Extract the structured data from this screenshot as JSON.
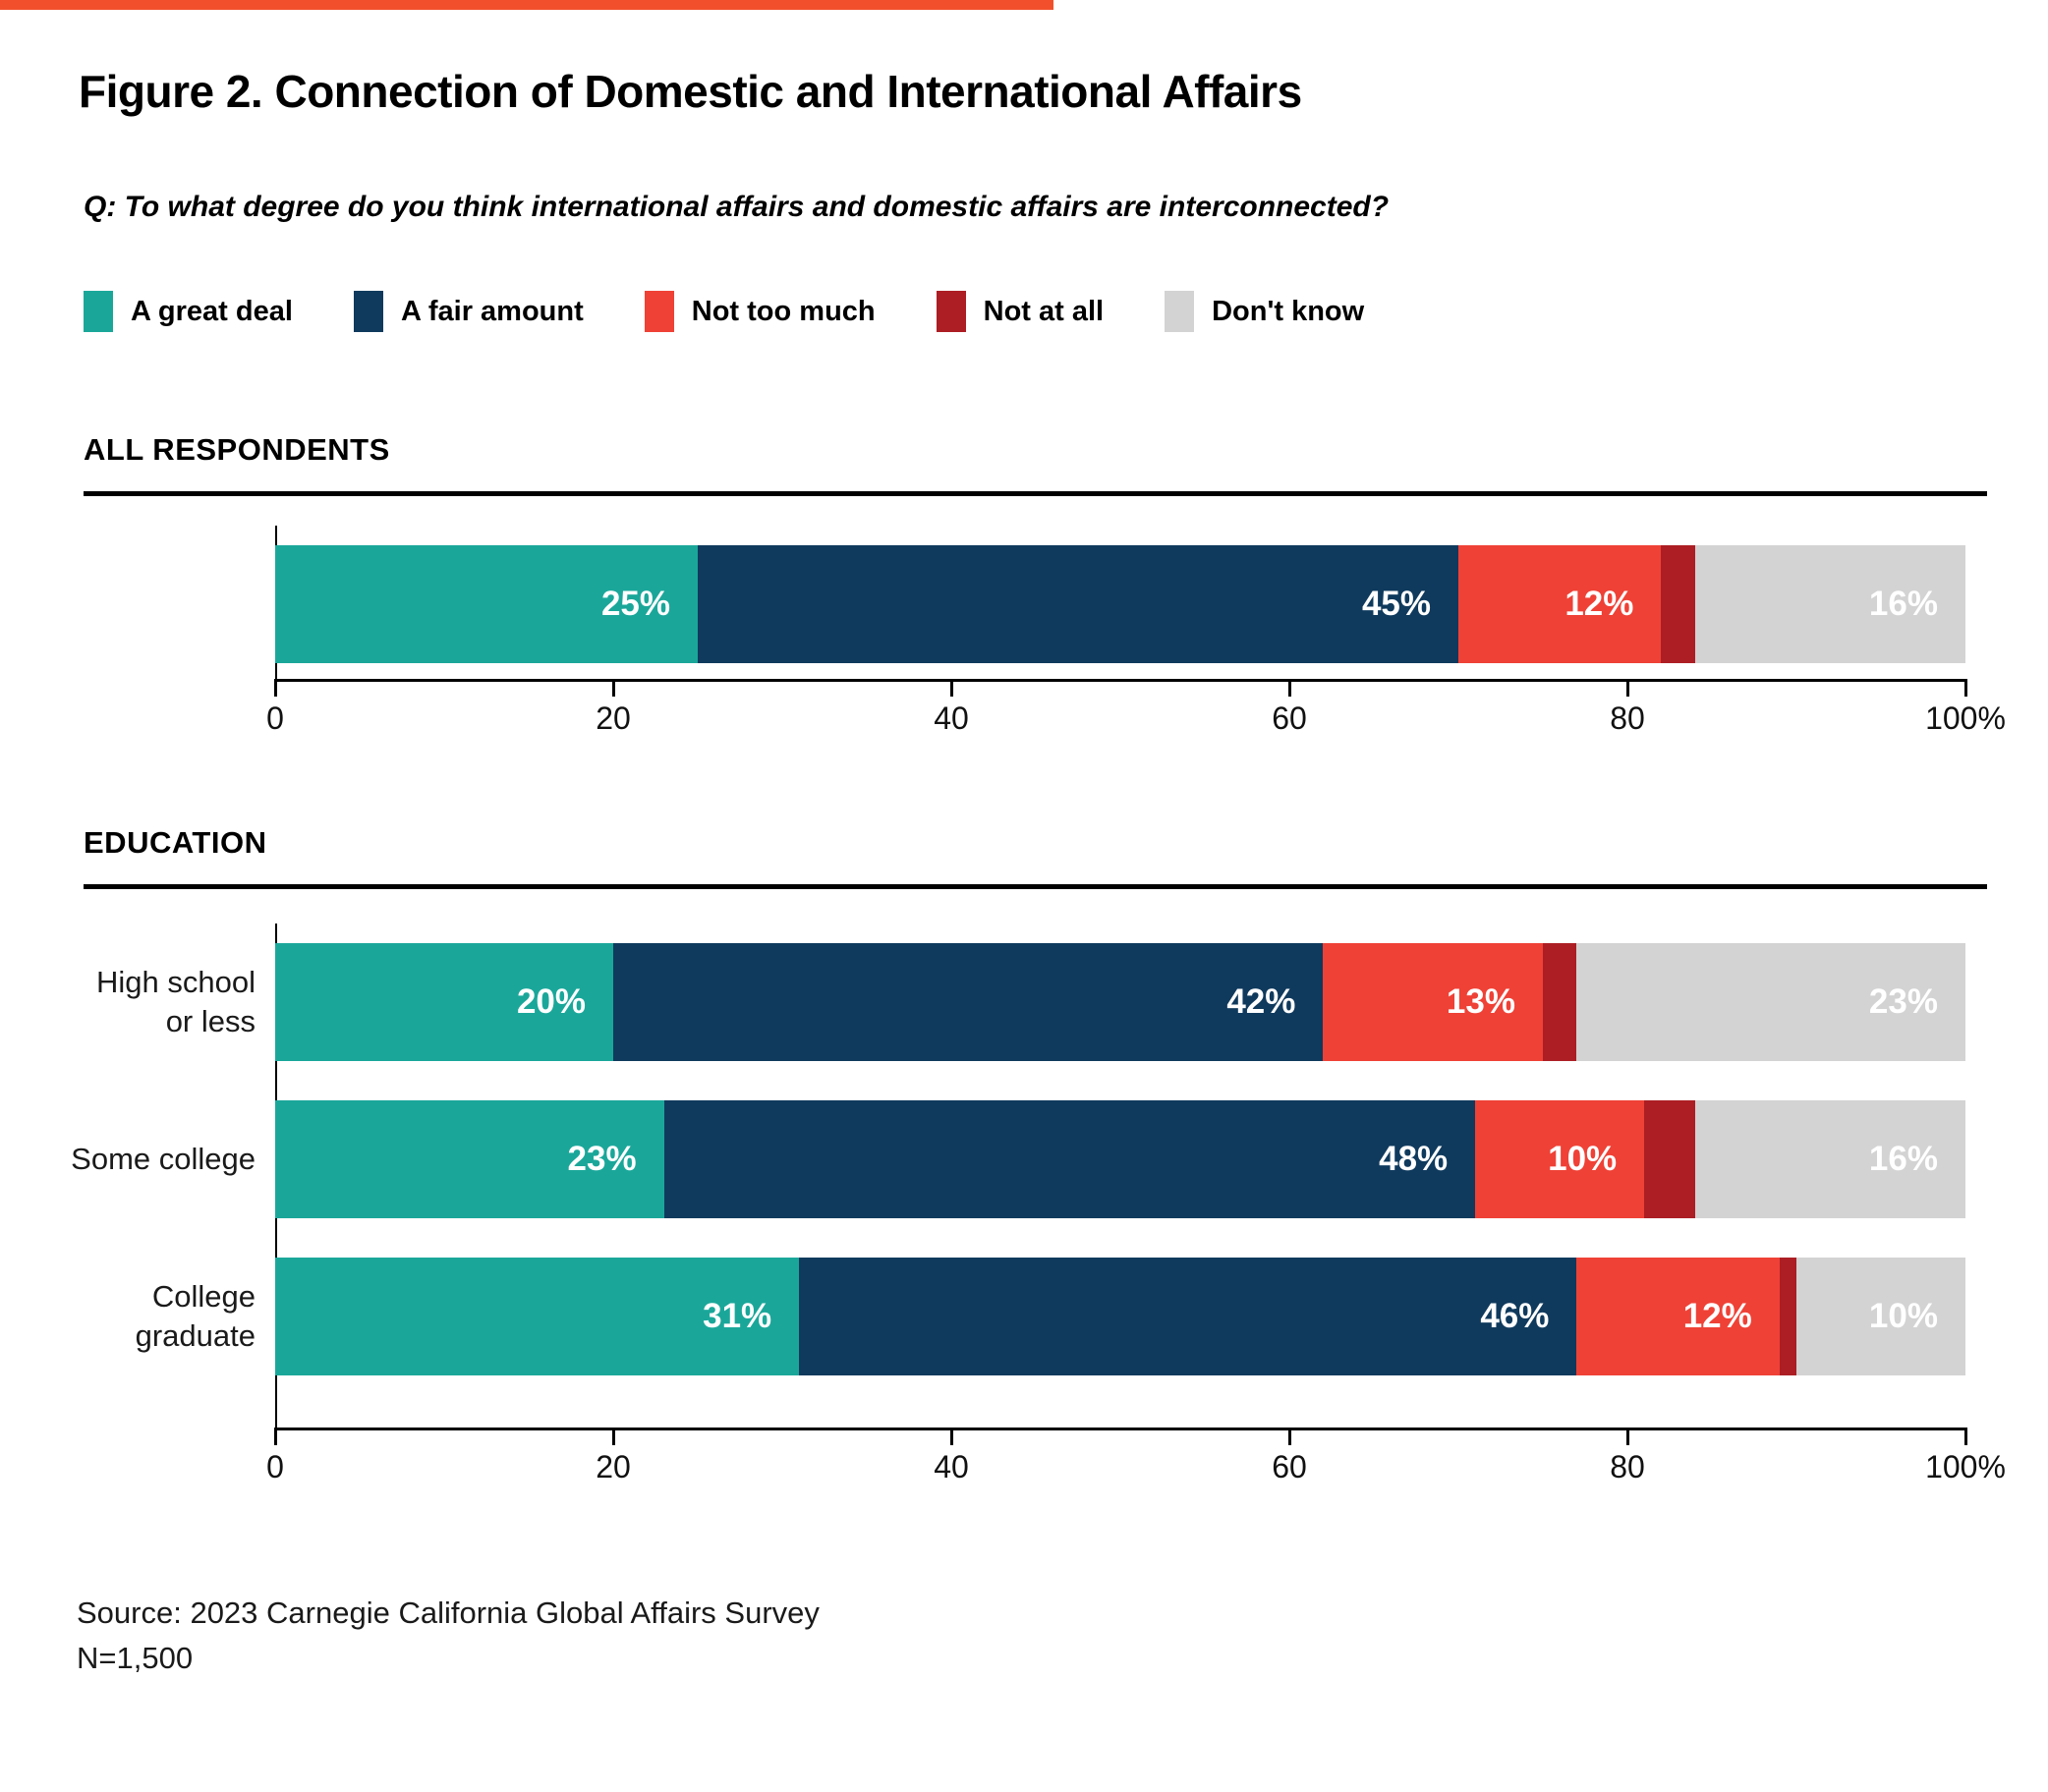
{
  "page": {
    "accent_color": "#f2502c",
    "source_line1": "Source: 2023 Carnegie California Global Affairs Survey",
    "source_line2": "N=1,500"
  },
  "chart_data": {
    "type": "bar",
    "stacked": true,
    "orientation": "horizontal",
    "title": "Figure 2. Connection of Domestic and International Affairs",
    "subtitle": "Q: To what degree do you think international affairs and domestic affairs are interconnected?",
    "xlabel": "",
    "ylabel": "",
    "xlim": [
      0,
      100
    ],
    "x_tick_values": [
      0,
      20,
      40,
      60,
      80,
      100
    ],
    "x_tick_labels": [
      "0",
      "20",
      "40",
      "60",
      "80",
      "100%"
    ],
    "grid": false,
    "legend_position": "top",
    "legend": [
      {
        "label": "A great deal",
        "color": "#1aa79a"
      },
      {
        "label": "A fair amount",
        "color": "#0f3a5d"
      },
      {
        "label": "Not too much",
        "color": "#ef4136"
      },
      {
        "label": "Not at all",
        "color": "#ac1e24"
      },
      {
        "label": "Don't know",
        "color": "#d3d3d3"
      }
    ],
    "series_labels": [
      "A great deal",
      "A fair amount",
      "Not too much",
      "Not at all",
      "Don't know"
    ],
    "sections": [
      {
        "title": "ALL RESPONDENTS",
        "rows": [
          {
            "label_lines": [],
            "values": [
              25,
              45,
              12,
              2,
              16
            ],
            "value_labels": [
              "25%",
              "45%",
              "12%",
              "",
              "16%"
            ]
          }
        ]
      },
      {
        "title": "EDUCATION",
        "rows": [
          {
            "label_lines": [
              "High school",
              "or less"
            ],
            "values": [
              20,
              42,
              13,
              2,
              23
            ],
            "value_labels": [
              "20%",
              "42%",
              "13%",
              "",
              "23%"
            ]
          },
          {
            "label_lines": [
              "Some college"
            ],
            "values": [
              23,
              48,
              10,
              3,
              16
            ],
            "value_labels": [
              "23%",
              "48%",
              "10%",
              "",
              "16%"
            ]
          },
          {
            "label_lines": [
              "College",
              "graduate"
            ],
            "values": [
              31,
              46,
              12,
              1,
              10
            ],
            "value_labels": [
              "31%",
              "46%",
              "12%",
              "",
              "10%"
            ]
          }
        ]
      }
    ]
  }
}
